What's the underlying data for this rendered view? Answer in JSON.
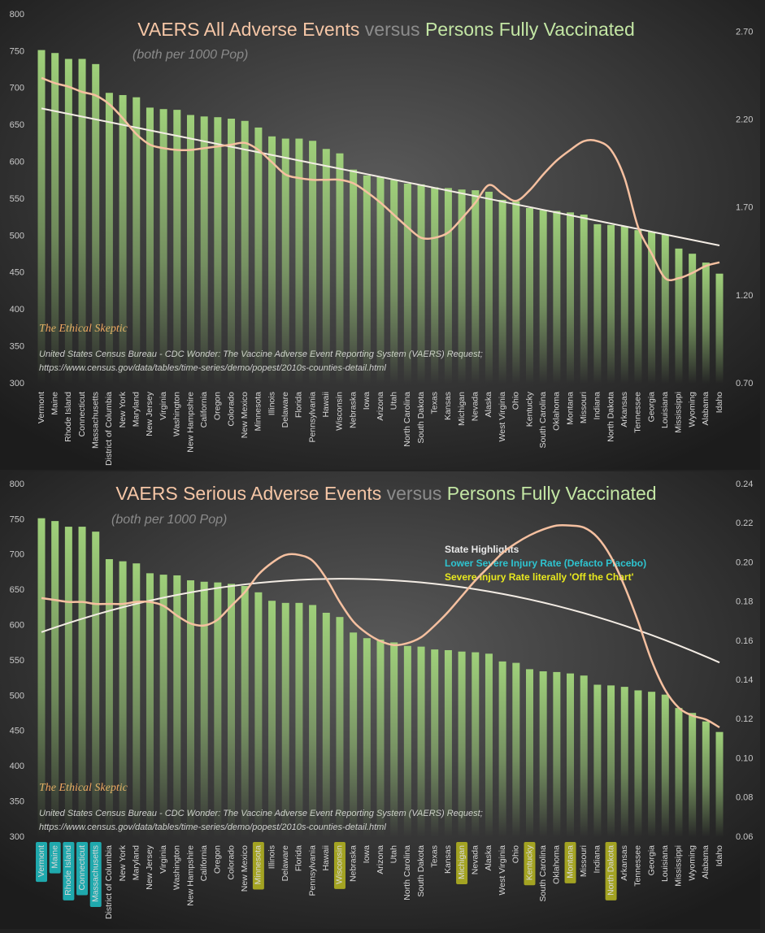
{
  "chart_data": [
    {
      "type": "bar",
      "title_parts": [
        {
          "text": "VAERS All Adverse Events",
          "color": "#f5c6a6"
        },
        {
          "text": "versus",
          "color": "#8c8c8c"
        },
        {
          "text": "Persons Fully Vaccinated",
          "color": "#c3e6a4"
        }
      ],
      "subtitle": "(both per 1000 Pop)",
      "watermark": "The Ethical Skeptic",
      "source": [
        "United States Census Bureau - CDC Wonder: The Vaccine Adverse Event Reporting System (VAERS) Request;",
        "https://www.census.gov/data/tables/time-series/demo/popest/2010s-counties-detail.html"
      ],
      "categories": [
        "Vermont",
        "Maine",
        "Rhode Island",
        "Connecticut",
        "Massachusetts",
        "District of Columbia",
        "New York",
        "Maryland",
        "New Jersey",
        "Virginia",
        "Washington",
        "New Hampshire",
        "California",
        "Oregon",
        "Colorado",
        "New Mexico",
        "Minnesota",
        "Illinois",
        "Delaware",
        "Florida",
        "Pennsylvania",
        "Hawaii",
        "Wisconsin",
        "Nebraska",
        "Iowa",
        "Arizona",
        "Utah",
        "North Carolina",
        "South Dakota",
        "Texas",
        "Kansas",
        "Michigan",
        "Nevada",
        "Alaska",
        "West Virginia",
        "Ohio",
        "Kentucky",
        "South Carolina",
        "Oklahoma",
        "Montana",
        "Missouri",
        "Indiana",
        "North Dakota",
        "Arkansas",
        "Tennessee",
        "Georgia",
        "Louisiana",
        "Mississippi",
        "Wyoming",
        "Alabama",
        "Idaho"
      ],
      "series": [
        {
          "color": "#9fd07a",
          "values": [
            752,
            748,
            740,
            740,
            733,
            694,
            691,
            688,
            674,
            672,
            671,
            664,
            662,
            661,
            659,
            656,
            647,
            635,
            632,
            632,
            629,
            618,
            612,
            590,
            582,
            580,
            576,
            571,
            570,
            566,
            565,
            563,
            562,
            560,
            549,
            547,
            538,
            535,
            534,
            532,
            529,
            516,
            515,
            513,
            508,
            506,
            502,
            483,
            476,
            464,
            449
          ]
        },
        {
          "color": "#f5c0a0",
          "axis": "y2",
          "smooth": true,
          "trendline": {
            "order": 1,
            "color": "#f3ece4"
          },
          "values": [
            2.44,
            2.41,
            2.39,
            2.36,
            2.34,
            2.29,
            2.21,
            2.12,
            2.06,
            2.04,
            2.03,
            2.03,
            2.04,
            2.05,
            2.06,
            2.07,
            2.03,
            1.96,
            1.89,
            1.87,
            1.86,
            1.86,
            1.86,
            1.84,
            1.79,
            1.73,
            1.66,
            1.59,
            1.53,
            1.53,
            1.56,
            1.64,
            1.73,
            1.83,
            1.78,
            1.74,
            1.8,
            1.89,
            1.97,
            2.03,
            2.08,
            2.08,
            2.03,
            1.87,
            1.59,
            1.44,
            1.3,
            1.3,
            1.33,
            1.37,
            1.39
          ]
        }
      ],
      "ylim": [
        300,
        800
      ],
      "yticks": [
        300,
        350,
        400,
        450,
        500,
        550,
        600,
        650,
        700,
        750,
        800
      ],
      "y2lim": [
        0.7,
        2.8
      ],
      "y2ticks": [
        {
          "value": 0.7,
          "label": "0.70"
        },
        {
          "value": 1.2,
          "label": "1.20"
        },
        {
          "value": 1.7,
          "label": "1.70"
        },
        {
          "value": 2.2,
          "label": "2.20"
        },
        {
          "value": 2.7,
          "label": "2.70"
        }
      ]
    },
    {
      "type": "bar",
      "title_parts": [
        {
          "text": "VAERS Serious Adverse Events",
          "color": "#f5c6a6"
        },
        {
          "text": "versus",
          "color": "#8c8c8c"
        },
        {
          "text": "Persons Fully Vaccinated",
          "color": "#c3e6a4"
        }
      ],
      "subtitle": "(both per 1000 Pop)",
      "watermark": "The Ethical Skeptic",
      "source": [
        "United States Census Bureau - CDC Wonder: The Vaccine Adverse Event Reporting System (VAERS) Request;",
        "https://www.census.gov/data/tables/time-series/demo/popest/2010s-counties-detail.html"
      ],
      "annotations": [
        {
          "text": "State Highlights",
          "color": "#e8e8e8"
        },
        {
          "text": "Lower Severe Injury Rate  (Defacto Placebo)",
          "color": "#2ec4d0"
        },
        {
          "text": "Severe Injury Rate literally 'Off the Chart'",
          "color": "#e8e81e"
        }
      ],
      "categories": [
        "Vermont",
        "Maine",
        "Rhode Island",
        "Connecticut",
        "Massachusetts",
        "District of Columbia",
        "New York",
        "Maryland",
        "New Jersey",
        "Virginia",
        "Washington",
        "New Hampshire",
        "California",
        "Oregon",
        "Colorado",
        "New Mexico",
        "Minnesota",
        "Illinois",
        "Delaware",
        "Florida",
        "Pennsylvania",
        "Hawaii",
        "Wisconsin",
        "Nebraska",
        "Iowa",
        "Arizona",
        "Utah",
        "North Carolina",
        "South Dakota",
        "Texas",
        "Kansas",
        "Michigan",
        "Nevada",
        "Alaska",
        "West Virginia",
        "Ohio",
        "Kentucky",
        "South Carolina",
        "Oklahoma",
        "Montana",
        "Missouri",
        "Indiana",
        "North Dakota",
        "Arkansas",
        "Tennessee",
        "Georgia",
        "Louisiana",
        "Mississippi",
        "Wyoming",
        "Alabama",
        "Idaho"
      ],
      "category_highlights": [
        "#1fa9ad",
        "#1fa9ad",
        "#1fa9ad",
        "#1fa9ad",
        "#1fa9ad",
        null,
        null,
        null,
        null,
        null,
        null,
        null,
        null,
        null,
        null,
        null,
        "#a3a322",
        null,
        null,
        null,
        null,
        null,
        "#a3a322",
        null,
        null,
        null,
        null,
        null,
        null,
        null,
        null,
        "#a3a322",
        null,
        null,
        null,
        null,
        "#a3a322",
        null,
        null,
        "#a3a322",
        null,
        null,
        "#a3a322",
        null,
        null,
        null,
        null,
        null,
        null,
        null,
        null
      ],
      "series": [
        {
          "color": "#9fd07a",
          "values": [
            752,
            748,
            740,
            740,
            733,
            694,
            691,
            688,
            674,
            672,
            671,
            664,
            662,
            661,
            659,
            656,
            647,
            635,
            632,
            632,
            629,
            618,
            612,
            590,
            582,
            580,
            576,
            571,
            570,
            566,
            565,
            563,
            562,
            560,
            549,
            547,
            538,
            535,
            534,
            532,
            529,
            516,
            515,
            513,
            508,
            506,
            502,
            483,
            476,
            464,
            449
          ]
        },
        {
          "color": "#f5c0a0",
          "axis": "y2",
          "smooth": true,
          "trendline": {
            "order": 2,
            "color": "#f3ece4"
          },
          "values": [
            0.182,
            0.181,
            0.18,
            0.18,
            0.179,
            0.179,
            0.179,
            0.18,
            0.18,
            0.178,
            0.173,
            0.169,
            0.168,
            0.171,
            0.178,
            0.185,
            0.194,
            0.2,
            0.204,
            0.204,
            0.201,
            0.192,
            0.18,
            0.17,
            0.164,
            0.16,
            0.158,
            0.159,
            0.162,
            0.168,
            0.175,
            0.183,
            0.191,
            0.198,
            0.205,
            0.21,
            0.214,
            0.217,
            0.219,
            0.219,
            0.218,
            0.213,
            0.203,
            0.188,
            0.17,
            0.15,
            0.135,
            0.126,
            0.122,
            0.12,
            0.116
          ]
        }
      ],
      "ylim": [
        300,
        800
      ],
      "yticks": [
        300,
        350,
        400,
        450,
        500,
        550,
        600,
        650,
        700,
        750,
        800
      ],
      "y2lim": [
        0.06,
        0.24
      ],
      "y2ticks": [
        0.06,
        0.08,
        {
          "value": 0.1,
          "label": "0.10"
        },
        0.12,
        0.14,
        0.16,
        0.18,
        {
          "value": 0.2,
          "label": "0.20"
        },
        0.22,
        0.24
      ]
    }
  ]
}
